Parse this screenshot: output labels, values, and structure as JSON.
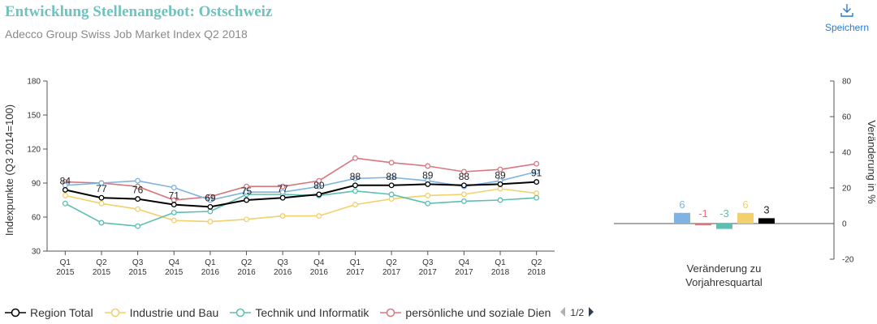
{
  "header": {
    "title": "Entwicklung Stellenangebot: Ostschweiz",
    "subtitle": "Adecco Group Swiss Job Market Index Q2 2018",
    "save_label": "Speichern",
    "save_icon": "download-icon"
  },
  "chart_data": [
    {
      "type": "line",
      "ylabel": "Indexpunkte (Q3 2014=100)",
      "ylim": [
        30,
        180
      ],
      "yticks": [
        30,
        60,
        90,
        120,
        150,
        180
      ],
      "grid": false,
      "categories": [
        [
          "Q1",
          "2015"
        ],
        [
          "Q2",
          "2015"
        ],
        [
          "Q3",
          "2015"
        ],
        [
          "Q4",
          "2015"
        ],
        [
          "Q1",
          "2016"
        ],
        [
          "Q2",
          "2016"
        ],
        [
          "Q3",
          "2016"
        ],
        [
          "Q4",
          "2016"
        ],
        [
          "Q1",
          "2017"
        ],
        [
          "Q2",
          "2017"
        ],
        [
          "Q3",
          "2017"
        ],
        [
          "Q4",
          "2017"
        ],
        [
          "Q1",
          "2018"
        ],
        [
          "Q2",
          "2018"
        ]
      ],
      "series": [
        {
          "name": "Region Total",
          "color": "#000000",
          "show_labels": true,
          "values": [
            84,
            77,
            76,
            71,
            69,
            75,
            77,
            80,
            88,
            88,
            89,
            88,
            89,
            91
          ],
          "data_labels": [
            "84",
            "77",
            "76",
            "71",
            "69",
            "75",
            "77",
            "80",
            "88",
            "88",
            "89",
            "88",
            "89",
            "91"
          ]
        },
        {
          "name": "Industrie und Bau",
          "color": "#f2d06b",
          "show_labels": false,
          "values": [
            79,
            72,
            67,
            57,
            56,
            58,
            61,
            61,
            71,
            76,
            79,
            80,
            85,
            81
          ]
        },
        {
          "name": "Technik und Informatik",
          "color": "#5cbfb0",
          "show_labels": false,
          "values": [
            72,
            55,
            52,
            64,
            65,
            80,
            80,
            79,
            83,
            80,
            72,
            74,
            75,
            77
          ]
        },
        {
          "name": "persönliche und soziale Dien",
          "color": "#d9767f",
          "show_labels": false,
          "values": [
            91,
            90,
            87,
            75,
            78,
            87,
            87,
            92,
            112,
            108,
            105,
            100,
            102,
            107
          ]
        },
        {
          "name": "",
          "color": "#7fb3e3",
          "show_labels": false,
          "values": [
            88,
            90,
            92,
            86,
            75,
            82,
            82,
            87,
            94,
            95,
            92,
            87,
            92,
            100
          ]
        }
      ]
    },
    {
      "type": "bar",
      "xlabel": "Veränderung zu Vorjahresquartal",
      "ylabel": "Veränderung in %",
      "ylim": [
        -20,
        80
      ],
      "yticks": [
        -20,
        0,
        20,
        40,
        60,
        80
      ],
      "axis_side": "right",
      "bars": [
        {
          "value": 6,
          "label": "6",
          "color": "#7fb3e3"
        },
        {
          "value": -1,
          "label": "-1",
          "color": "#d9767f"
        },
        {
          "value": -3,
          "label": "-3",
          "color": "#5cbfb0"
        },
        {
          "value": 6,
          "label": "6",
          "color": "#f2d06b"
        },
        {
          "value": 3,
          "label": "3",
          "color": "#000000"
        }
      ]
    }
  ],
  "legend": {
    "items": [
      {
        "label": "Region Total",
        "color": "#000000"
      },
      {
        "label": "Industrie und Bau",
        "color": "#f2d06b"
      },
      {
        "label": "Technik und Informatik",
        "color": "#5cbfb0"
      },
      {
        "label": "persönliche und soziale Dien",
        "color": "#d9767f"
      }
    ],
    "page": "1/2",
    "prev_icon": "triangle-left-icon",
    "next_icon": "triangle-right-icon"
  }
}
